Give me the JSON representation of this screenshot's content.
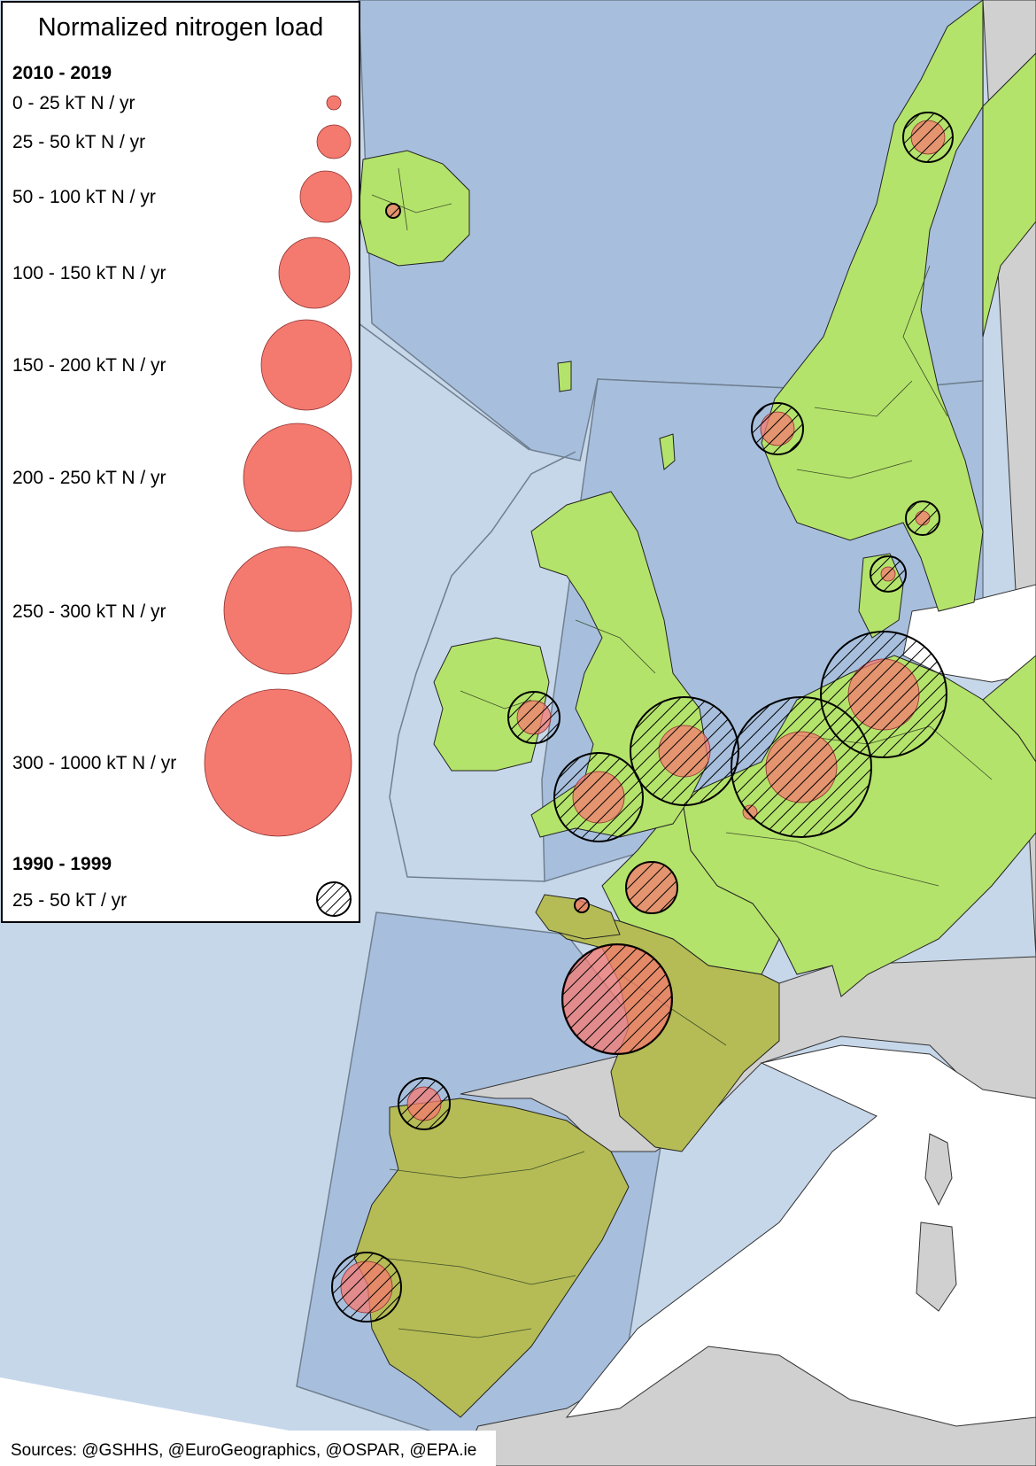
{
  "legend": {
    "title": "Normalized nitrogen load",
    "period_recent": "2010 - 2019",
    "period_old": "1990 - 1999",
    "classes": [
      {
        "label": "0 - 25 kT N / yr"
      },
      {
        "label": "25 - 50 kT N / yr"
      },
      {
        "label": "50 - 100 kT N / yr"
      },
      {
        "label": "100 - 150 kT N / yr"
      },
      {
        "label": "150 - 200 kT N / yr"
      },
      {
        "label": "200 - 250 kT N / yr"
      },
      {
        "label": "250 - 300 kT N / yr"
      },
      {
        "label": "300 - 1000 kT N / yr"
      }
    ],
    "old_class_label": "25 - 50 kT / yr"
  },
  "sources": "Sources: @GSHHS, @EuroGeographics, @OSPAR, @EPA.ie",
  "colors": {
    "ocean": "#a7bfdd",
    "ocean_outer": "#c7d7ea",
    "land_other": "#d0d0d0",
    "land_catchment": "#b4e36b",
    "land_iberia_france": "#b5bc55",
    "load_fill": "#f47a70",
    "load_stroke": "#8b2f2f",
    "hatch": "#000000"
  }
}
